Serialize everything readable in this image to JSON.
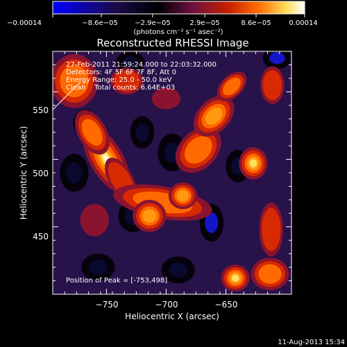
{
  "chart_data": {
    "type": "heatmap",
    "title": "Reconstructed RHESSI Image",
    "xlabel": "Heliocentric X (arcsec)",
    "ylabel": "Heliocentric Y (arcsec)",
    "xlim": [
      -795,
      -595
    ],
    "ylim": [
      400,
      580
    ],
    "x_ticks": [
      -750,
      -700,
      -650
    ],
    "y_ticks": [
      450,
      500,
      550
    ],
    "x_tick_labels": [
      "−750",
      "−700",
      "−650"
    ],
    "y_tick_labels": [
      "450",
      "500",
      "550"
    ],
    "colorbar": {
      "range": [
        -0.00014,
        0.00014
      ],
      "ticks": [
        -0.00014,
        -8.6e-05,
        -2.9e-05,
        2.9e-05,
        8.6e-05,
        0.00014
      ],
      "tick_labels": [
        "−0.00014",
        "−8.6e−05",
        "−2.9e−05",
        "2.9e−05",
        "8.6e−05",
        "0.00014"
      ],
      "units_text": "(photons cm⁻² s⁻¹ asec⁻²)",
      "colors": [
        "#0000ff",
        "#1a0a4a",
        "#000000",
        "#6a1040",
        "#c82000",
        "#ff7000",
        "#ffe060",
        "#ffffff"
      ]
    },
    "annotations": [
      "27-Feb-2011 21:59:24.000 to 22:03:32.000",
      "Detectors: 4F 5F 6F 7F 8F, Att 0",
      "Energy Range: 25.0 - 50.0 keV",
      "Clean    Total counts: 6.64E+03",
      "Position of Peak = [-753,498]"
    ],
    "peak": {
      "x": -753,
      "y": 498
    },
    "bright_sources": [
      {
        "x": -750,
        "y": 500,
        "rx": 14,
        "ry": 28,
        "angle": -30,
        "v": 0.000135
      },
      {
        "x": -762,
        "y": 520,
        "rx": 12,
        "ry": 18,
        "angle": -30,
        "v": 8e-05
      },
      {
        "x": -738,
        "y": 485,
        "rx": 10,
        "ry": 18,
        "angle": -30,
        "v": 7e-05
      },
      {
        "x": -703,
        "y": 468,
        "rx": 42,
        "ry": 12,
        "angle": 10,
        "v": 9e-05
      },
      {
        "x": -714,
        "y": 458,
        "rx": 14,
        "ry": 12,
        "angle": 0,
        "v": 0.000115
      },
      {
        "x": -686,
        "y": 473,
        "rx": 12,
        "ry": 10,
        "angle": 0,
        "v": 0.0001
      },
      {
        "x": -673,
        "y": 507,
        "rx": 22,
        "ry": 14,
        "angle": -45,
        "v": 9e-05
      },
      {
        "x": -660,
        "y": 532,
        "rx": 20,
        "ry": 12,
        "angle": -45,
        "v": 0.0001
      },
      {
        "x": -627,
        "y": 497,
        "rx": 12,
        "ry": 12,
        "angle": 0,
        "v": 0.000125
      },
      {
        "x": -645,
        "y": 554,
        "rx": 15,
        "ry": 8,
        "angle": -45,
        "v": 8e-05
      },
      {
        "x": -777,
        "y": 558,
        "rx": 20,
        "ry": 20,
        "angle": 0,
        "v": 8e-05
      },
      {
        "x": -733,
        "y": 558,
        "rx": 14,
        "ry": 10,
        "angle": 0,
        "v": 6e-05
      },
      {
        "x": -760,
        "y": 455,
        "rx": 12,
        "ry": 12,
        "angle": 0,
        "v": 5e-05
      },
      {
        "x": -642,
        "y": 412,
        "rx": 12,
        "ry": 10,
        "angle": 0,
        "v": 0.00012
      },
      {
        "x": -613,
        "y": 415,
        "rx": 16,
        "ry": 12,
        "angle": 0,
        "v": 9e-05
      },
      {
        "x": -612,
        "y": 448,
        "rx": 10,
        "ry": 20,
        "angle": 0,
        "v": 6e-05
      },
      {
        "x": -700,
        "y": 545,
        "rx": 12,
        "ry": 8,
        "angle": 0,
        "v": 4e-05
      },
      {
        "x": -611,
        "y": 555,
        "rx": 10,
        "ry": 14,
        "angle": 0,
        "v": 6e-05
      }
    ],
    "dark_sources": [
      {
        "x": -768,
        "y": 527,
        "rx": 10,
        "ry": 10,
        "v": -0.00012
      },
      {
        "x": -777,
        "y": 490,
        "rx": 12,
        "ry": 14,
        "v": -9e-05
      },
      {
        "x": -728,
        "y": 458,
        "rx": 12,
        "ry": 12,
        "v": -0.0001
      },
      {
        "x": -695,
        "y": 505,
        "rx": 12,
        "ry": 14,
        "v": -9e-05
      },
      {
        "x": -662,
        "y": 453,
        "rx": 10,
        "ry": 14,
        "v": -0.00011
      },
      {
        "x": -607,
        "y": 575,
        "rx": 12,
        "ry": 8,
        "v": -0.00012
      },
      {
        "x": -720,
        "y": 520,
        "rx": 10,
        "ry": 12,
        "v": -8e-05
      },
      {
        "x": -757,
        "y": 420,
        "rx": 14,
        "ry": 10,
        "v": -8e-05
      },
      {
        "x": -690,
        "y": 418,
        "rx": 14,
        "ry": 10,
        "v": -9e-05
      },
      {
        "x": -640,
        "y": 495,
        "rx": 10,
        "ry": 12,
        "v": -8e-05
      },
      {
        "x": -730,
        "y": 572,
        "rx": 12,
        "ry": 8,
        "v": -7e-05
      }
    ]
  },
  "footer": {
    "date": "11-Aug-2013 15:34"
  }
}
